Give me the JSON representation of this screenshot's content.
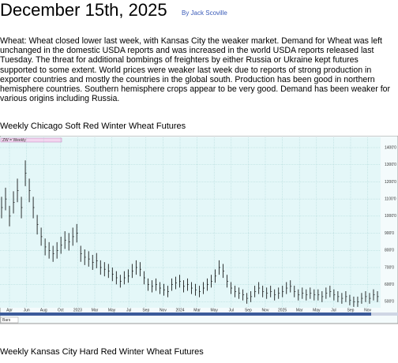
{
  "header": {
    "title": "December 15th, 2025",
    "byline": "By Jack Scoville"
  },
  "body": "Wheat:  Wheat closed lower last week, with Kansas City the weaker market. Demand for Wheat was left unchanged in the domestic USDA reports and was increased in the world USDA reports released last Tuesday.  The threat for additional bombings of freighters by either Russia or Ukraine kept futures supported to some extent.  World prices were weaker last week due to reports of strong production in exporter countries and mostly the countries in the global south.  Production has been good in northern hemisphere countries.  Southern hemisphere crops appear to be very good.  Demand has been weaker for various origins including Russia.",
  "caption1": "Weekly Chicago Soft Red Winter Wheat Futures",
  "chart": {
    "type": "bar",
    "legend": "ZW = Weekly",
    "color": "#000000",
    "categories": [
      "Apr",
      "Jun",
      "Aug",
      "Oct",
      "2023",
      "Mar",
      "May",
      "Jul",
      "Sep",
      "Nov",
      "2024",
      "Mar",
      "May",
      "Jul",
      "Sep",
      "Nov",
      "2025",
      "Mar",
      "May",
      "Jul",
      "Sep",
      "Nov"
    ],
    "values": [
      1050,
      1100,
      1000,
      1080,
      1150,
      1050,
      1250,
      1150,
      1050,
      950,
      880,
      820,
      800,
      780,
      800,
      830,
      860,
      850,
      880,
      900,
      780,
      760,
      750,
      730,
      740,
      700,
      690,
      680,
      660,
      640,
      620,
      640,
      650,
      680,
      700,
      690,
      640,
      600,
      590,
      600,
      580,
      570,
      560,
      600,
      610,
      620,
      590,
      600,
      580,
      570,
      560,
      580,
      600,
      620,
      650,
      700,
      680,
      620,
      580,
      560,
      550,
      540,
      520,
      530,
      560,
      580,
      560,
      550,
      560,
      540,
      550,
      560,
      580,
      590,
      560,
      540,
      550,
      540,
      550,
      540,
      540,
      530,
      550,
      560,
      540,
      530,
      520,
      530,
      510,
      500,
      500,
      520,
      530,
      520,
      540,
      530
    ],
    "ylim": [
      465,
      1460
    ],
    "yticks": [
      {
        "value": 1400,
        "label": "1400'0"
      },
      {
        "value": 1300,
        "label": "1300'0"
      },
      {
        "value": 1200,
        "label": "1200'0"
      },
      {
        "value": 1100,
        "label": "1100'0"
      },
      {
        "value": 1000,
        "label": "1000'0"
      },
      {
        "value": 900,
        "label": "900'0"
      },
      {
        "value": 800,
        "label": "800'0"
      },
      {
        "value": 700,
        "label": "700'0"
      },
      {
        "value": 600,
        "label": "600'0"
      },
      {
        "value": 500,
        "label": "500'0"
      }
    ],
    "grid": true,
    "footer": "Bars"
  },
  "caption2": "Weekly Kansas City Hard Red Winter Wheat Futures"
}
